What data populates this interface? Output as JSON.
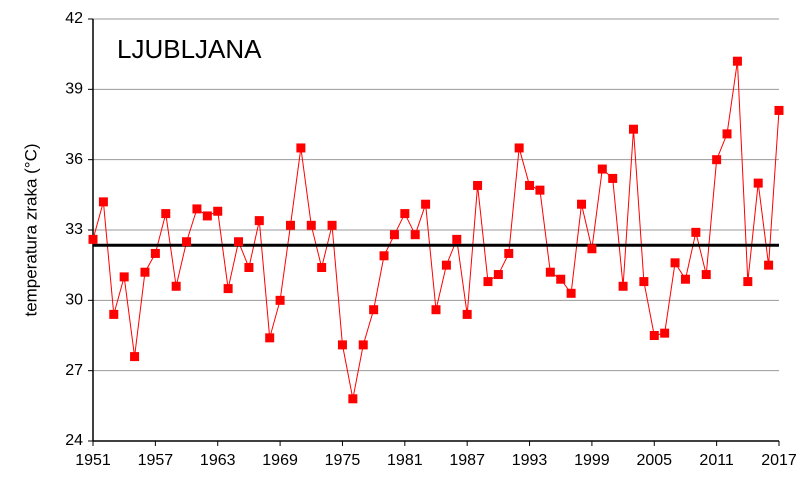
{
  "chart_data": {
    "type": "line",
    "title": "LJUBLJANA",
    "y_label": "temperatura zraka (°C)",
    "x": [
      1951,
      1952,
      1953,
      1954,
      1955,
      1956,
      1957,
      1958,
      1959,
      1960,
      1961,
      1962,
      1963,
      1964,
      1965,
      1966,
      1967,
      1968,
      1969,
      1970,
      1971,
      1972,
      1973,
      1974,
      1975,
      1976,
      1977,
      1978,
      1979,
      1980,
      1981,
      1982,
      1983,
      1984,
      1985,
      1986,
      1987,
      1988,
      1989,
      1990,
      1991,
      1992,
      1993,
      1994,
      1995,
      1996,
      1997,
      1998,
      1999,
      2000,
      2001,
      2002,
      2003,
      2004,
      2005,
      2006,
      2007,
      2008,
      2009,
      2010,
      2011,
      2012,
      2013,
      2014,
      2015,
      2016,
      2017
    ],
    "values": [
      32.6,
      34.2,
      29.4,
      31.0,
      27.6,
      31.2,
      32.0,
      33.7,
      30.6,
      32.5,
      33.9,
      33.6,
      33.8,
      30.5,
      32.5,
      31.4,
      33.4,
      28.4,
      30.0,
      33.2,
      36.5,
      33.2,
      31.4,
      33.2,
      28.1,
      25.8,
      28.1,
      29.6,
      31.9,
      32.8,
      33.7,
      32.8,
      34.1,
      29.6,
      31.5,
      32.6,
      29.4,
      34.9,
      30.8,
      31.1,
      32.0,
      36.5,
      34.9,
      34.7,
      31.2,
      30.9,
      30.3,
      34.1,
      32.2,
      35.6,
      35.2,
      30.6,
      37.3,
      30.8,
      28.5,
      28.6,
      31.6,
      30.9,
      32.9,
      31.1,
      36.0,
      37.1,
      40.2,
      30.8,
      35.0,
      31.5,
      38.1
    ],
    "color": "#ff0000",
    "reference_line": 32.35,
    "reference_color": "#000000",
    "xlim": [
      1951,
      2017
    ],
    "xticks": [
      1951,
      1957,
      1963,
      1969,
      1975,
      1981,
      1987,
      1993,
      1999,
      2005,
      2011,
      2017
    ],
    "ylim": [
      24,
      42
    ],
    "yticks": [
      24,
      27,
      30,
      33,
      36,
      39,
      42
    ],
    "grid": true
  }
}
